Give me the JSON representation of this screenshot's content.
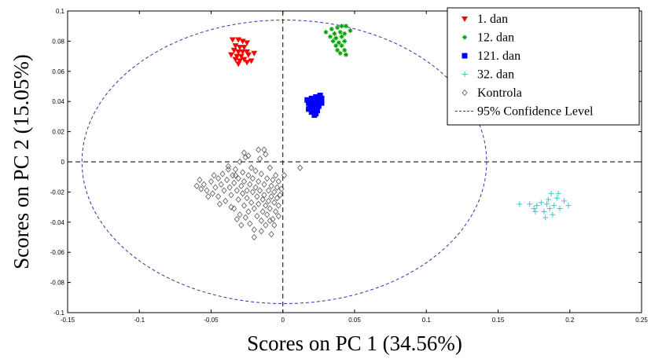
{
  "chart_data": {
    "type": "scatter",
    "xlabel": "Scores on PC 1 (34.56%)",
    "ylabel": "Scores on PC 2 (15.05%)",
    "xlim": [
      -0.15,
      0.25
    ],
    "ylim": [
      -0.1,
      0.1
    ],
    "xticks": [
      -0.15,
      -0.1,
      -0.05,
      0,
      0.05,
      0.1,
      0.15,
      0.2,
      0.25
    ],
    "xtick_labels": [
      "-0.15",
      "-0.1",
      "-0.05",
      "0",
      "0.05",
      "0.1",
      "0.15",
      "0.2",
      "0.25"
    ],
    "yticks": [
      0.1,
      0.08,
      0.06,
      0.04,
      0.02,
      0,
      -0.02,
      -0.04,
      -0.06,
      -0.08,
      -0.1
    ],
    "ytick_labels": [
      "0.1",
      "0.08",
      "0.06",
      "0.04",
      "0.02",
      "0",
      "-0.02",
      "-0.04",
      "-0.06",
      "-0.08",
      "-0.1"
    ],
    "reference_lines": {
      "x": 0,
      "y": 0
    },
    "grid": false,
    "legend_position": "top-right",
    "series": [
      {
        "name": "1. dan",
        "marker": "triangle-down",
        "color": "#ff0000",
        "points": [
          [
            -0.035,
            0.081
          ],
          [
            -0.031,
            0.081
          ],
          [
            -0.028,
            0.08
          ],
          [
            -0.025,
            0.079
          ],
          [
            -0.033,
            0.077
          ],
          [
            -0.03,
            0.076
          ],
          [
            -0.027,
            0.076
          ],
          [
            -0.034,
            0.074
          ],
          [
            -0.031,
            0.073
          ],
          [
            -0.028,
            0.073
          ],
          [
            -0.025,
            0.073
          ],
          [
            -0.036,
            0.071
          ],
          [
            -0.032,
            0.07
          ],
          [
            -0.029,
            0.07
          ],
          [
            -0.024,
            0.071
          ],
          [
            -0.02,
            0.072
          ],
          [
            -0.033,
            0.068
          ],
          [
            -0.03,
            0.067
          ],
          [
            -0.027,
            0.068
          ],
          [
            -0.022,
            0.067
          ],
          [
            -0.031,
            0.065
          ],
          [
            -0.025,
            0.066
          ]
        ]
      },
      {
        "name": "12. dan",
        "marker": "star",
        "color": "#00a000",
        "points": [
          [
            0.03,
            0.086
          ],
          [
            0.034,
            0.088
          ],
          [
            0.038,
            0.089
          ],
          [
            0.041,
            0.09
          ],
          [
            0.044,
            0.09
          ],
          [
            0.047,
            0.087
          ],
          [
            0.036,
            0.085
          ],
          [
            0.04,
            0.086
          ],
          [
            0.043,
            0.085
          ],
          [
            0.033,
            0.083
          ],
          [
            0.037,
            0.082
          ],
          [
            0.041,
            0.083
          ],
          [
            0.035,
            0.08
          ],
          [
            0.039,
            0.079
          ],
          [
            0.043,
            0.08
          ],
          [
            0.037,
            0.077
          ],
          [
            0.041,
            0.077
          ],
          [
            0.038,
            0.074
          ],
          [
            0.043,
            0.074
          ],
          [
            0.04,
            0.072
          ],
          [
            0.044,
            0.071
          ]
        ]
      },
      {
        "name": "121. dan",
        "marker": "square",
        "color": "#0000ff",
        "points": [
          [
            0.017,
            0.041
          ],
          [
            0.02,
            0.042
          ],
          [
            0.023,
            0.043
          ],
          [
            0.026,
            0.044
          ],
          [
            0.027,
            0.042
          ],
          [
            0.018,
            0.039
          ],
          [
            0.021,
            0.039
          ],
          [
            0.024,
            0.04
          ],
          [
            0.027,
            0.039
          ],
          [
            0.019,
            0.037
          ],
          [
            0.022,
            0.036
          ],
          [
            0.025,
            0.037
          ],
          [
            0.018,
            0.035
          ],
          [
            0.021,
            0.034
          ],
          [
            0.024,
            0.034
          ],
          [
            0.02,
            0.033
          ],
          [
            0.023,
            0.032
          ],
          [
            0.022,
            0.031
          ]
        ]
      },
      {
        "name": "32. dan",
        "marker": "plus",
        "color": "#33cccc",
        "points": [
          [
            0.165,
            -0.028
          ],
          [
            0.172,
            -0.028
          ],
          [
            0.175,
            -0.031
          ],
          [
            0.177,
            -0.029
          ],
          [
            0.18,
            -0.027
          ],
          [
            0.182,
            -0.033
          ],
          [
            0.184,
            -0.028
          ],
          [
            0.185,
            -0.025
          ],
          [
            0.186,
            -0.031
          ],
          [
            0.187,
            -0.021
          ],
          [
            0.188,
            -0.035
          ],
          [
            0.189,
            -0.029
          ],
          [
            0.191,
            -0.024
          ],
          [
            0.192,
            -0.021
          ],
          [
            0.193,
            -0.031
          ],
          [
            0.196,
            -0.026
          ],
          [
            0.199,
            -0.029
          ],
          [
            0.176,
            -0.033
          ],
          [
            0.183,
            -0.037
          ]
        ]
      },
      {
        "name": "Kontrola",
        "marker": "diamond",
        "color": "#555555",
        "points": [
          [
            -0.06,
            -0.016
          ],
          [
            -0.057,
            -0.018
          ],
          [
            -0.055,
            -0.015
          ],
          [
            -0.053,
            -0.019
          ],
          [
            -0.05,
            -0.013
          ],
          [
            -0.049,
            -0.021
          ],
          [
            -0.047,
            -0.017
          ],
          [
            -0.045,
            -0.011
          ],
          [
            -0.045,
            -0.023
          ],
          [
            -0.043,
            -0.015
          ],
          [
            -0.042,
            -0.008
          ],
          [
            -0.041,
            -0.019
          ],
          [
            -0.04,
            -0.026
          ],
          [
            -0.039,
            -0.012
          ],
          [
            -0.038,
            -0.003
          ],
          [
            -0.037,
            -0.017
          ],
          [
            -0.036,
            -0.022
          ],
          [
            -0.035,
            -0.009
          ],
          [
            -0.034,
            -0.031
          ],
          [
            -0.034,
            -0.014
          ],
          [
            -0.033,
            -0.005
          ],
          [
            -0.032,
            -0.019
          ],
          [
            -0.031,
            -0.025
          ],
          [
            -0.031,
            -0.011
          ],
          [
            -0.03,
            -0.035
          ],
          [
            -0.03,
            0.0
          ],
          [
            -0.029,
            -0.016
          ],
          [
            -0.028,
            -0.021
          ],
          [
            -0.028,
            -0.007
          ],
          [
            -0.027,
            -0.029
          ],
          [
            -0.027,
            -0.013
          ],
          [
            -0.026,
            -0.037
          ],
          [
            -0.026,
            0.003
          ],
          [
            -0.025,
            -0.019
          ],
          [
            -0.025,
            -0.024
          ],
          [
            -0.024,
            -0.009
          ],
          [
            -0.024,
            -0.033
          ],
          [
            -0.023,
            -0.015
          ],
          [
            -0.023,
            -0.041
          ],
          [
            -0.022,
            -0.004
          ],
          [
            -0.022,
            -0.027
          ],
          [
            -0.021,
            -0.02
          ],
          [
            -0.021,
            -0.011
          ],
          [
            -0.02,
            -0.031
          ],
          [
            -0.02,
            -0.045
          ],
          [
            -0.019,
            -0.017
          ],
          [
            -0.019,
            -0.006
          ],
          [
            -0.018,
            -0.023
          ],
          [
            -0.018,
            -0.036
          ],
          [
            -0.017,
            -0.013
          ],
          [
            -0.017,
            -0.028
          ],
          [
            -0.016,
            0.002
          ],
          [
            -0.016,
            -0.019
          ],
          [
            -0.015,
            -0.039
          ],
          [
            -0.015,
            -0.008
          ],
          [
            -0.014,
            -0.025
          ],
          [
            -0.014,
            -0.033
          ],
          [
            -0.013,
            -0.015
          ],
          [
            -0.013,
            -0.022
          ],
          [
            -0.012,
            -0.042
          ],
          [
            -0.012,
            -0.029
          ],
          [
            -0.011,
            -0.011
          ],
          [
            -0.011,
            -0.035
          ],
          [
            -0.01,
            -0.019
          ],
          [
            -0.01,
            -0.026
          ],
          [
            -0.009,
            -0.004
          ],
          [
            -0.009,
            -0.031
          ],
          [
            -0.008,
            -0.016
          ],
          [
            -0.008,
            -0.023
          ],
          [
            -0.007,
            -0.038
          ],
          [
            -0.007,
            -0.012
          ],
          [
            -0.006,
            -0.027
          ],
          [
            -0.006,
            -0.02
          ],
          [
            -0.005,
            -0.033
          ],
          [
            -0.005,
            -0.009
          ],
          [
            -0.004,
            -0.024
          ],
          [
            -0.004,
            -0.017
          ],
          [
            -0.003,
            -0.029
          ],
          [
            -0.003,
            -0.013
          ],
          [
            -0.002,
            -0.022
          ],
          [
            -0.008,
            -0.048
          ],
          [
            -0.012,
            0.005
          ],
          [
            -0.017,
            0.008
          ],
          [
            -0.027,
            0.006
          ],
          [
            -0.032,
            -0.038
          ],
          [
            -0.036,
            -0.03
          ],
          [
            -0.044,
            -0.028
          ],
          [
            -0.048,
            -0.009
          ],
          [
            -0.052,
            -0.023
          ],
          [
            -0.058,
            -0.012
          ],
          [
            0.012,
            -0.004
          ],
          [
            -0.006,
            -0.042
          ],
          [
            0.001,
            -0.009
          ],
          [
            -0.001,
            -0.018
          ],
          [
            -0.003,
            -0.036
          ],
          [
            -0.015,
            -0.046
          ],
          [
            -0.02,
            -0.05
          ],
          [
            -0.029,
            -0.042
          ],
          [
            -0.033,
            -0.009
          ],
          [
            -0.038,
            -0.005
          ],
          [
            -0.024,
            0.004
          ],
          [
            -0.013,
            0.008
          ],
          [
            -0.009,
            -0.039
          ]
        ]
      },
      {
        "name": "95% Confidence Level",
        "marker": "dashed-line",
        "color": "#3333aa",
        "ellipse": {
          "cx": 0.001,
          "cy": 0.0,
          "rx": 0.141,
          "ry": 0.094
        }
      }
    ]
  }
}
